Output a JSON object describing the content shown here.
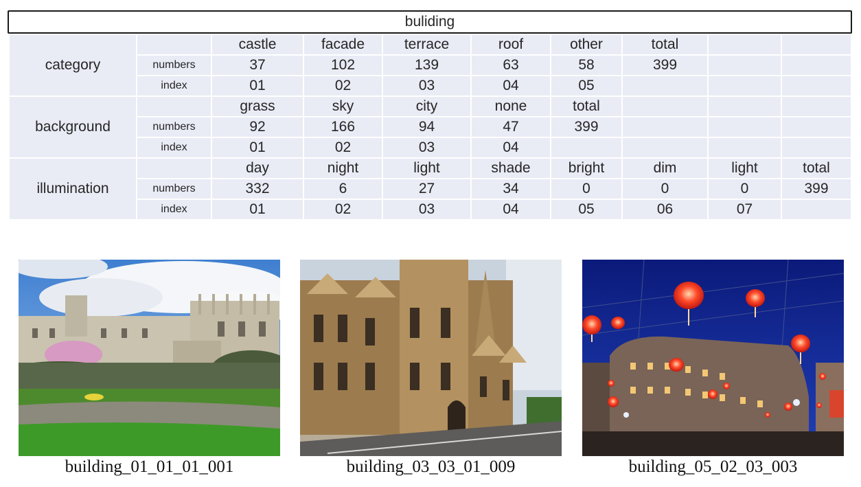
{
  "title": "buliding",
  "groups": [
    {
      "name": "category",
      "labels": [
        "castle",
        "facade",
        "terrace",
        "roof",
        "other",
        "total",
        "",
        ""
      ],
      "numbers_label": "numbers",
      "numbers": [
        "37",
        "102",
        "139",
        "63",
        "58",
        "399",
        "",
        ""
      ],
      "index_label": "index",
      "index": [
        "01",
        "02",
        "03",
        "04",
        "05",
        "",
        "",
        ""
      ]
    },
    {
      "name": "background",
      "labels": [
        "grass",
        "sky",
        "city",
        "none",
        "total",
        "",
        "",
        ""
      ],
      "numbers_label": "numbers",
      "numbers": [
        "92",
        "166",
        "94",
        "47",
        "399",
        "",
        "",
        ""
      ],
      "index_label": "index",
      "index": [
        "01",
        "02",
        "03",
        "04",
        "",
        "",
        "",
        ""
      ]
    },
    {
      "name": "illumination",
      "labels": [
        "day",
        "night",
        "light",
        "shade",
        "bright",
        "dim",
        "light",
        "total"
      ],
      "numbers_label": "numbers",
      "numbers": [
        "332",
        "6",
        "27",
        "34",
        "0",
        "0",
        "0",
        "399"
      ],
      "index_label": "index",
      "index": [
        "01",
        "02",
        "03",
        "04",
        "05",
        "06",
        "07",
        ""
      ]
    }
  ],
  "images": [
    {
      "caption": "building_01_01_01_001",
      "scene": "castle-grass-day"
    },
    {
      "caption": "building_03_03_01_009",
      "scene": "facade-street-sunlight"
    },
    {
      "caption": "building_05_02_03_003",
      "scene": "city-night-lanterns"
    }
  ],
  "colors": {
    "table_fill": "#e9ebf5",
    "text": "#262626",
    "night_sky": "#13228a",
    "lantern_red": "#ff3b2a"
  }
}
